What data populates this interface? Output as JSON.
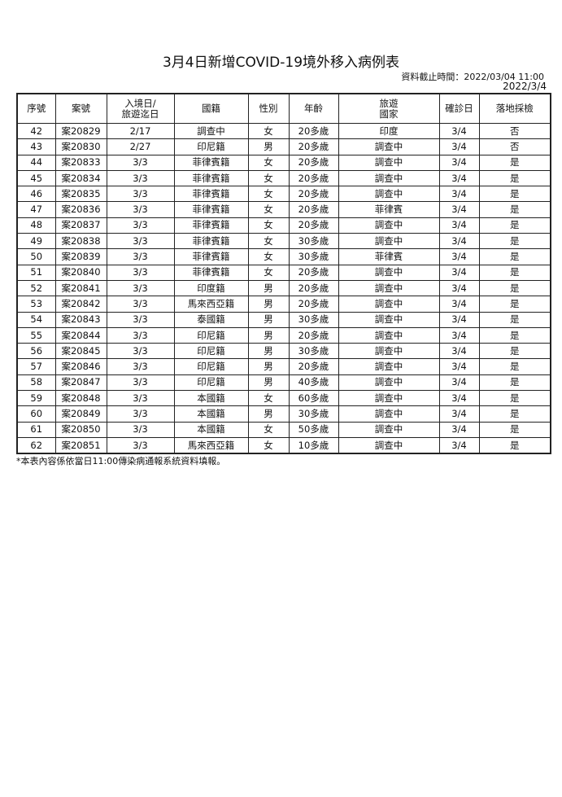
{
  "title": "3月4日新增COVID-19境外移入病例表",
  "data_cutoff": "資料截止時間：2022/03/04 11:00",
  "date": "2022/3/4",
  "columns": [
    "序號",
    "案號",
    "入境日/\n旅遊迄日",
    "國籍",
    "性別",
    "年齡",
    "旅遊\n國家",
    "確診日",
    "落地採檢"
  ],
  "rows": [
    [
      "42",
      "案20829",
      "2/17",
      "調查中",
      "女",
      "20多歲",
      "印度",
      "3/4",
      "否"
    ],
    [
      "43",
      "案20830",
      "2/27",
      "印尼籍",
      "男",
      "20多歲",
      "調查中",
      "3/4",
      "否"
    ],
    [
      "44",
      "案20833",
      "3/3",
      "菲律賓籍",
      "女",
      "20多歲",
      "調查中",
      "3/4",
      "是"
    ],
    [
      "45",
      "案20834",
      "3/3",
      "菲律賓籍",
      "女",
      "20多歲",
      "調查中",
      "3/4",
      "是"
    ],
    [
      "46",
      "案20835",
      "3/3",
      "菲律賓籍",
      "女",
      "20多歲",
      "調查中",
      "3/4",
      "是"
    ],
    [
      "47",
      "案20836",
      "3/3",
      "菲律賓籍",
      "女",
      "20多歲",
      "菲律賓",
      "3/4",
      "是"
    ],
    [
      "48",
      "案20837",
      "3/3",
      "菲律賓籍",
      "女",
      "20多歲",
      "調查中",
      "3/4",
      "是"
    ],
    [
      "49",
      "案20838",
      "3/3",
      "菲律賓籍",
      "女",
      "30多歲",
      "調查中",
      "3/4",
      "是"
    ],
    [
      "50",
      "案20839",
      "3/3",
      "菲律賓籍",
      "女",
      "30多歲",
      "菲律賓",
      "3/4",
      "是"
    ],
    [
      "51",
      "案20840",
      "3/3",
      "菲律賓籍",
      "女",
      "20多歲",
      "調查中",
      "3/4",
      "是"
    ],
    [
      "52",
      "案20841",
      "3/3",
      "印度籍",
      "男",
      "20多歲",
      "調查中",
      "3/4",
      "是"
    ],
    [
      "53",
      "案20842",
      "3/3",
      "馬來西亞籍",
      "男",
      "20多歲",
      "調查中",
      "3/4",
      "是"
    ],
    [
      "54",
      "案20843",
      "3/3",
      "泰國籍",
      "男",
      "30多歲",
      "調查中",
      "3/4",
      "是"
    ],
    [
      "55",
      "案20844",
      "3/3",
      "印尼籍",
      "男",
      "20多歲",
      "調查中",
      "3/4",
      "是"
    ],
    [
      "56",
      "案20845",
      "3/3",
      "印尼籍",
      "男",
      "30多歲",
      "調查中",
      "3/4",
      "是"
    ],
    [
      "57",
      "案20846",
      "3/3",
      "印尼籍",
      "男",
      "20多歲",
      "調查中",
      "3/4",
      "是"
    ],
    [
      "58",
      "案20847",
      "3/3",
      "印尼籍",
      "男",
      "40多歲",
      "調查中",
      "3/4",
      "是"
    ],
    [
      "59",
      "案20848",
      "3/3",
      "本國籍",
      "女",
      "60多歲",
      "調查中",
      "3/4",
      "是"
    ],
    [
      "60",
      "案20849",
      "3/3",
      "本國籍",
      "男",
      "30多歲",
      "調查中",
      "3/4",
      "是"
    ],
    [
      "61",
      "案20850",
      "3/3",
      "本國籍",
      "女",
      "50多歲",
      "調查中",
      "3/4",
      "是"
    ],
    [
      "62",
      "案20851",
      "3/3",
      "馬來西亞籍",
      "女",
      "10多歲",
      "調查中",
      "3/4",
      "是"
    ]
  ],
  "footnote": "*本表內容係依當日11:00傳染病通報系統資料填報。"
}
